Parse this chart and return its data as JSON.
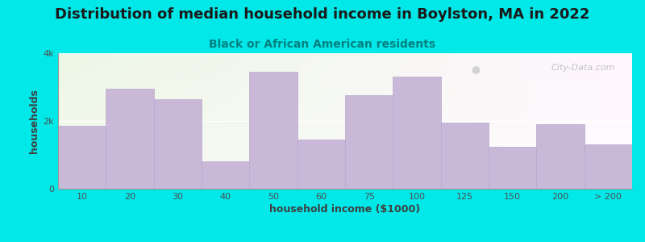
{
  "title": "Distribution of median household income in Boylston, MA in 2022",
  "subtitle": "Black or African American residents",
  "xlabel": "household income ($1000)",
  "ylabel": "households",
  "bar_labels": [
    "10",
    "20",
    "30",
    "40",
    "50",
    "60",
    "75",
    "100",
    "125",
    "150",
    "200",
    "> 200"
  ],
  "bar_heights": [
    1850,
    2950,
    2650,
    800,
    3450,
    1450,
    2750,
    3300,
    1950,
    1250,
    1900,
    1300
  ],
  "bar_color": "#c9b8d8",
  "bar_edgecolor": "#b8a8cc",
  "bg_outer": "#00e8e8",
  "bg_plot": "#eaf5e5",
  "title_color": "#1a1a1a",
  "subtitle_color": "#008080",
  "title_fontsize": 13,
  "subtitle_fontsize": 10,
  "axis_label_fontsize": 9,
  "tick_fontsize": 8,
  "ylim": [
    0,
    4000
  ],
  "yticks": [
    0,
    2000,
    4000
  ],
  "ytick_labels": [
    "0",
    "2k",
    "4k"
  ],
  "watermark": "City-Data.com"
}
